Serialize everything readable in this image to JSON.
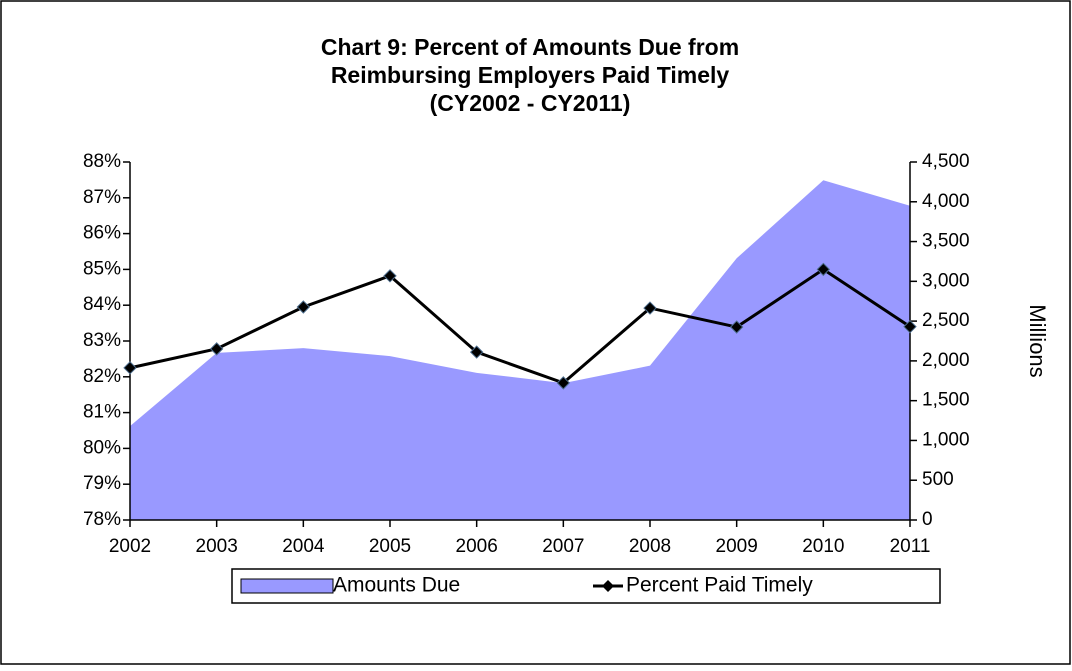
{
  "chart_data": {
    "type": "line",
    "title": [
      "Chart 9: Percent of Amounts Due from",
      "Reimbursing Employers Paid Timely",
      "(CY2002 - CY2011)"
    ],
    "categories": [
      "2002",
      "2003",
      "2004",
      "2005",
      "2006",
      "2007",
      "2008",
      "2009",
      "2010",
      "2011"
    ],
    "series": [
      {
        "name": "Amounts Due",
        "type": "area",
        "axis": "y2",
        "color": "#9999ff",
        "values": [
          1180,
          2100,
          2160,
          2060,
          1850,
          1720,
          1940,
          3290,
          4270,
          3950
        ]
      },
      {
        "name": "Percent Paid Timely",
        "type": "line",
        "color": "#000000",
        "values": [
          82.25,
          82.78,
          83.95,
          84.82,
          82.69,
          81.83,
          83.92,
          83.39,
          85.0,
          83.4
        ]
      }
    ],
    "ylim": [
      78,
      88
    ],
    "yticks": [
      {
        "value": 78,
        "label": "78%"
      },
      {
        "value": 79,
        "label": "79%"
      },
      {
        "value": 80,
        "label": "80%"
      },
      {
        "value": 81,
        "label": "81%"
      },
      {
        "value": 82,
        "label": "82%"
      },
      {
        "value": 83,
        "label": "83%"
      },
      {
        "value": 84,
        "label": "84%"
      },
      {
        "value": 85,
        "label": "85%"
      },
      {
        "value": 86,
        "label": "86%"
      },
      {
        "value": 87,
        "label": "87%"
      },
      {
        "value": 88,
        "label": "88%"
      }
    ],
    "y2lim": [
      0,
      4500
    ],
    "y2ticks": [
      0,
      500,
      {
        "value": 1000,
        "label": "1,000"
      },
      {
        "value": 1500,
        "label": "1,500"
      },
      {
        "value": 2000,
        "label": "2,000"
      },
      {
        "value": 2500,
        "label": "2,500"
      },
      {
        "value": 3000,
        "label": "3,000"
      },
      {
        "value": 3500,
        "label": "3,500"
      },
      {
        "value": 4000,
        "label": "4,000"
      },
      {
        "value": 4500,
        "label": "4,500"
      }
    ],
    "y2label": "Millions",
    "legend": "bottom"
  }
}
